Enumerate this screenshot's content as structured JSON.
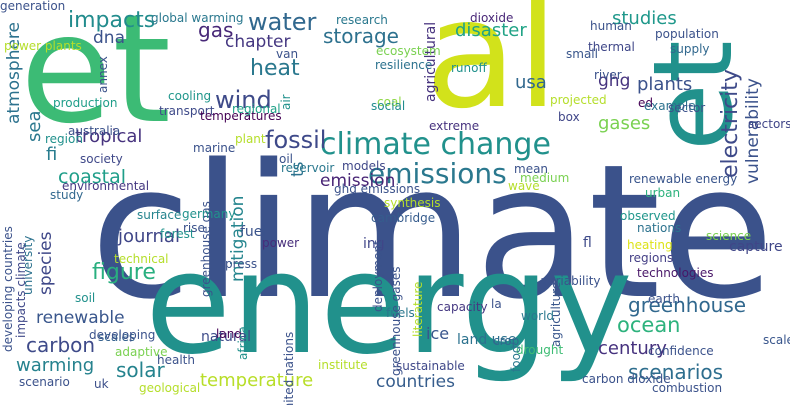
{
  "words": [
    {
      "text": "climate",
      "color": "#3b528b"
    },
    {
      "text": "et",
      "color": "#3cbb75"
    },
    {
      "text": "al",
      "color": "#d2e21b"
    },
    {
      "text": "energy",
      "color": "#21918c"
    },
    {
      "text": "et",
      "color": "#21918c"
    },
    {
      "text": "climate change",
      "color": "#21918c"
    },
    {
      "text": "emissions",
      "color": "#2a788e"
    },
    {
      "text": "wind",
      "color": "#3e4a89"
    },
    {
      "text": "water",
      "color": "#31688e"
    },
    {
      "text": "heat",
      "color": "#2a788e"
    },
    {
      "text": "fossil",
      "color": "#3e4989"
    },
    {
      "text": "gas",
      "color": "#482878"
    },
    {
      "text": "impacts",
      "color": "#228c8d"
    },
    {
      "text": "chapter",
      "color": "#453781"
    },
    {
      "text": "dna",
      "color": "#3b528b"
    },
    {
      "text": "storage",
      "color": "#2d718e"
    },
    {
      "text": "disaster",
      "color": "#20a386"
    },
    {
      "text": "studies",
      "color": "#1f988b"
    },
    {
      "text": "usa",
      "color": "#31688e"
    },
    {
      "text": "ghg",
      "color": "#46337e"
    },
    {
      "text": "plants",
      "color": "#3b528b"
    },
    {
      "text": "electricity",
      "color": "#3e4a89"
    },
    {
      "text": "vulnerability",
      "color": "#3b528b"
    },
    {
      "text": "gases",
      "color": "#7ad151"
    },
    {
      "text": "atmosphere",
      "color": "#2c728e"
    },
    {
      "text": "tropical",
      "color": "#46327e"
    },
    {
      "text": "fi",
      "color": "#287c8e"
    },
    {
      "text": "coastal",
      "color": "#1f9e89"
    },
    {
      "text": "sea",
      "color": "#2a788e"
    },
    {
      "text": "ts",
      "color": "#2c728e"
    },
    {
      "text": "emission",
      "color": "#482475"
    },
    {
      "text": "mitigation",
      "color": "#25858e"
    },
    {
      "text": "species",
      "color": "#3f4889"
    },
    {
      "text": "journal",
      "color": "#404688"
    },
    {
      "text": "figure",
      "color": "#29af7f"
    },
    {
      "text": "renewable",
      "color": "#39568c"
    },
    {
      "text": "carbon",
      "color": "#3e4a89"
    },
    {
      "text": "warming",
      "color": "#26828e"
    },
    {
      "text": "solar",
      "color": "#25838e"
    },
    {
      "text": "temperature",
      "color": "#b8de29"
    },
    {
      "text": "countries",
      "color": "#365d8d"
    },
    {
      "text": "ocean",
      "color": "#2db27d"
    },
    {
      "text": "greenhouse",
      "color": "#31688e"
    },
    {
      "text": "century",
      "color": "#46327e"
    },
    {
      "text": "scenarios",
      "color": "#2e6e8e"
    },
    {
      "text": "ice",
      "color": "#39558c"
    },
    {
      "text": "capture",
      "color": "#404688"
    },
    {
      "text": "cooling",
      "color": "#1f968b"
    },
    {
      "text": "transport",
      "color": "#3e4a89"
    },
    {
      "text": "production",
      "color": "#1f9e89"
    },
    {
      "text": "temperatures",
      "color": "#440154"
    },
    {
      "text": "regional",
      "color": "#1fa188"
    },
    {
      "text": "coal",
      "color": "#8fd744"
    },
    {
      "text": "social",
      "color": "#228d8d"
    },
    {
      "text": "extreme",
      "color": "#46327e"
    },
    {
      "text": "models",
      "color": "#3f4788"
    },
    {
      "text": "environmental",
      "color": "#453882"
    },
    {
      "text": "surface",
      "color": "#25848e"
    },
    {
      "text": "forest",
      "color": "#20928c"
    },
    {
      "text": "fuel",
      "color": "#3a538b"
    },
    {
      "text": "power",
      "color": "#472d7b"
    },
    {
      "text": "ing",
      "color": "#404688"
    },
    {
      "text": "cambridge",
      "color": "#365c8d"
    },
    {
      "text": "deployment",
      "color": "#3b528b"
    },
    {
      "text": "renewable energy",
      "color": "#39558c"
    },
    {
      "text": "urban",
      "color": "#2db27d"
    },
    {
      "text": "observed",
      "color": "#1f968b"
    },
    {
      "text": "nations",
      "color": "#2c728e"
    },
    {
      "text": "heating",
      "color": "#dde318"
    },
    {
      "text": "regions",
      "color": "#433e85"
    },
    {
      "text": "technologies",
      "color": "#481668"
    },
    {
      "text": "agriculture",
      "color": "#39568c"
    },
    {
      "text": "fl",
      "color": "#3e4a89"
    },
    {
      "text": "capacity",
      "color": "#453882"
    },
    {
      "text": "fuels",
      "color": "#2a778e"
    },
    {
      "text": "land use",
      "color": "#2c728e"
    },
    {
      "text": "world",
      "color": "#2a788e"
    },
    {
      "text": "drought",
      "color": "#3dbc74"
    },
    {
      "text": "sustainable",
      "color": "#3f4889"
    },
    {
      "text": "carbon dioxide",
      "color": "#3b528b"
    },
    {
      "text": "natural",
      "color": "#3e4c8a"
    },
    {
      "text": "land",
      "color": "#440154"
    },
    {
      "text": "scenario",
      "color": "#3b528b"
    },
    {
      "text": "uk",
      "color": "#3c4f8a"
    },
    {
      "text": "scales",
      "color": "#34618d"
    },
    {
      "text": "thermal",
      "color": "#3f4788"
    },
    {
      "text": "human",
      "color": "#3b528b"
    },
    {
      "text": "dioxide",
      "color": "#482677"
    },
    {
      "text": "research",
      "color": "#2a788e"
    },
    {
      "text": "box",
      "color": "#404688"
    },
    {
      "text": "ed",
      "color": "#440154"
    },
    {
      "text": "university",
      "color": "#2c728e"
    },
    {
      "text": "soil",
      "color": "#21918c"
    },
    {
      "text": "oil",
      "color": "#3b528b"
    },
    {
      "text": "food",
      "color": "#2a788e"
    },
    {
      "text": "crop",
      "color": "#31688e"
    },
    {
      "text": "confidence",
      "color": "#3b528b"
    },
    {
      "text": "scale",
      "color": "#39568c"
    },
    {
      "text": "agricultural",
      "color": "#46327e"
    },
    {
      "text": "greenhouse gas",
      "color": "#3b528b"
    },
    {
      "text": "technical",
      "color": "#b5de2b"
    },
    {
      "text": "developing countries",
      "color": "#3b528b"
    },
    {
      "text": "impacts climate",
      "color": "#3f4889"
    },
    {
      "text": "annex",
      "color": "#3b528b"
    },
    {
      "text": "air",
      "color": "#21918c"
    },
    {
      "text": "van",
      "color": "#3b528b"
    },
    {
      "text": "plant",
      "color": "#b5de2b"
    },
    {
      "text": "global warming",
      "color": "#2a788e"
    },
    {
      "text": "power plants",
      "color": "#b5de2b"
    },
    {
      "text": "population",
      "color": "#3b528b"
    },
    {
      "text": "supply",
      "color": "#31688e"
    },
    {
      "text": "small",
      "color": "#39568c"
    },
    {
      "text": "ecosystem",
      "color": "#7ad151"
    },
    {
      "text": "resilience",
      "color": "#2c728e"
    },
    {
      "text": "runoff",
      "color": "#21918c"
    },
    {
      "text": "river",
      "color": "#3b528b"
    },
    {
      "text": "projected",
      "color": "#b5de2b"
    },
    {
      "text": "example",
      "color": "#2c728e"
    },
    {
      "text": "sector",
      "color": "#3b528b"
    },
    {
      "text": "sectors",
      "color": "#404688"
    },
    {
      "text": "region",
      "color": "#21918c"
    },
    {
      "text": "australia",
      "color": "#3b528b"
    },
    {
      "text": "society",
      "color": "#3f4889"
    },
    {
      "text": "marine",
      "color": "#3b528b"
    },
    {
      "text": "reservoir",
      "color": "#2a788e"
    },
    {
      "text": "synthesis",
      "color": "#b5de2b"
    },
    {
      "text": "ghg emissions",
      "color": "#3b528b"
    },
    {
      "text": "medium",
      "color": "#7ad151"
    },
    {
      "text": "mean",
      "color": "#3b528b"
    },
    {
      "text": "study",
      "color": "#31688e"
    },
    {
      "text": "wave",
      "color": "#b5de2b"
    },
    {
      "text": "science",
      "color": "#7ad151"
    },
    {
      "text": "rise",
      "color": "#3b528b"
    },
    {
      "text": "germany",
      "color": "#21918c"
    },
    {
      "text": "press",
      "color": "#3b528b"
    },
    {
      "text": "greenhouse gases",
      "color": "#3b528b"
    },
    {
      "text": "literature",
      "color": "#b5de2b"
    },
    {
      "text": "variability",
      "color": "#3b528b"
    },
    {
      "text": "la",
      "color": "#3b528b"
    },
    {
      "text": "earth",
      "color": "#3b528b"
    },
    {
      "text": "developing",
      "color": "#3b528b"
    },
    {
      "text": "adaptive",
      "color": "#7ad151"
    },
    {
      "text": "health",
      "color": "#3b528b"
    },
    {
      "text": "africa",
      "color": "#21918c"
    },
    {
      "text": "united nations",
      "color": "#3b528b"
    },
    {
      "text": "institute",
      "color": "#b5de2b"
    },
    {
      "text": "geological",
      "color": "#b5de2b"
    },
    {
      "text": "combustion",
      "color": "#3b528b"
    },
    {
      "text": "generation",
      "color": "#3b528b"
    }
  ]
}
